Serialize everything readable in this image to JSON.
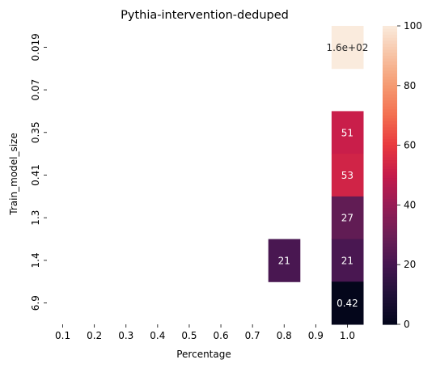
{
  "chart_data": {
    "type": "heatmap",
    "title": "Pythia-intervention-deduped",
    "xlabel": "Percentage",
    "ylabel": "Train_model_size",
    "x_categories": [
      "0.1",
      "0.2",
      "0.3",
      "0.4",
      "0.5",
      "0.6",
      "0.7",
      "0.8",
      "0.9",
      "1.0"
    ],
    "y_categories": [
      "0.019",
      "0.07",
      "0.35",
      "0.41",
      "1.3",
      "1.4",
      "6.9"
    ],
    "cells": [
      {
        "x": "1.0",
        "y": "0.019",
        "value": 160,
        "label": "1.6e+02"
      },
      {
        "x": "1.0",
        "y": "0.35",
        "value": 51,
        "label": "51"
      },
      {
        "x": "1.0",
        "y": "0.41",
        "value": 53,
        "label": "53"
      },
      {
        "x": "1.0",
        "y": "1.3",
        "value": 27,
        "label": "27"
      },
      {
        "x": "0.8",
        "y": "1.4",
        "value": 21,
        "label": "21"
      },
      {
        "x": "1.0",
        "y": "1.4",
        "value": 21,
        "label": "21"
      },
      {
        "x": "1.0",
        "y": "6.9",
        "value": 0.42,
        "label": "0.42"
      }
    ],
    "colorbar": {
      "min": 0,
      "max": 100,
      "ticks": [
        "0",
        "20",
        "40",
        "60",
        "80",
        "100"
      ],
      "colormap": "rocket"
    },
    "grid": false
  }
}
